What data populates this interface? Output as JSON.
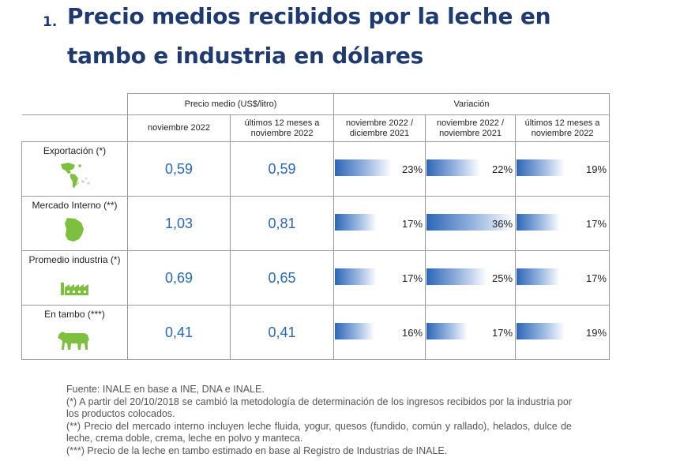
{
  "title": {
    "number": "1.",
    "line1": "Precio medios recibidos por la leche en",
    "line2": "tambo e industria en dólares"
  },
  "table": {
    "group_price": "Precio medio (US$/litro)",
    "group_variation": "Variación",
    "col_price_month": "noviembre 2022",
    "col_price_12m": "últimos 12 meses a noviembre 2022",
    "col_var_month": "noviembre 2022 / diciembre 2021",
    "col_var_yoy": "noviembre 2022 / noviembre 2021",
    "col_var_12m": "últimos 12 meses a noviembre 2022",
    "rows": [
      {
        "label": "Exportación (*)",
        "icon": "world-map-americas-icon",
        "price_month": "0,59",
        "price_12m": "0,59",
        "var_month": "23%",
        "var_yoy": "22%",
        "var_12m": "19%",
        "var_month_value": 23,
        "var_yoy_value": 22,
        "var_12m_value": 19
      },
      {
        "label": "Mercado Interno (**)",
        "icon": "uruguay-map-icon",
        "price_month": "1,03",
        "price_12m": "0,81",
        "var_month": "17%",
        "var_yoy": "36%",
        "var_12m": "17%",
        "var_month_value": 17,
        "var_yoy_value": 36,
        "var_12m_value": 17
      },
      {
        "label": "Promedio industria (*)",
        "icon": "factory-icon",
        "price_month": "0,69",
        "price_12m": "0,65",
        "var_month": "17%",
        "var_yoy": "25%",
        "var_12m": "17%",
        "var_month_value": 17,
        "var_yoy_value": 25,
        "var_12m_value": 17
      },
      {
        "label": "En tambo (***)",
        "icon": "cow-icon",
        "price_month": "0,41",
        "price_12m": "0,41",
        "var_month": "16%",
        "var_yoy": "17%",
        "var_12m": "19%",
        "var_month_value": 16,
        "var_yoy_value": 17,
        "var_12m_value": 19
      }
    ]
  },
  "notes": {
    "source": "Fuente: INALE en base a INE, DNA e INALE.",
    "note1": "(*) A partir del 20/10/2018 se cambió la metodología de determinación de los ingresos recibidos por la industria por los productos colocados.",
    "note2": "(**) Precio del mercado interno incluyen leche fluida, yogur, quesos (fundido, común y rallado), helados, dulce de leche, crema doble, crema, leche en polvo y manteca.",
    "note3": "(***) Precio de la leche en tambo estimado en base al Registro de Industrias de INALE."
  },
  "colors": {
    "title": "#1f3a6e",
    "value": "#2a68b6",
    "bar": "#2d66b6",
    "icon": "#7fbf3f"
  }
}
